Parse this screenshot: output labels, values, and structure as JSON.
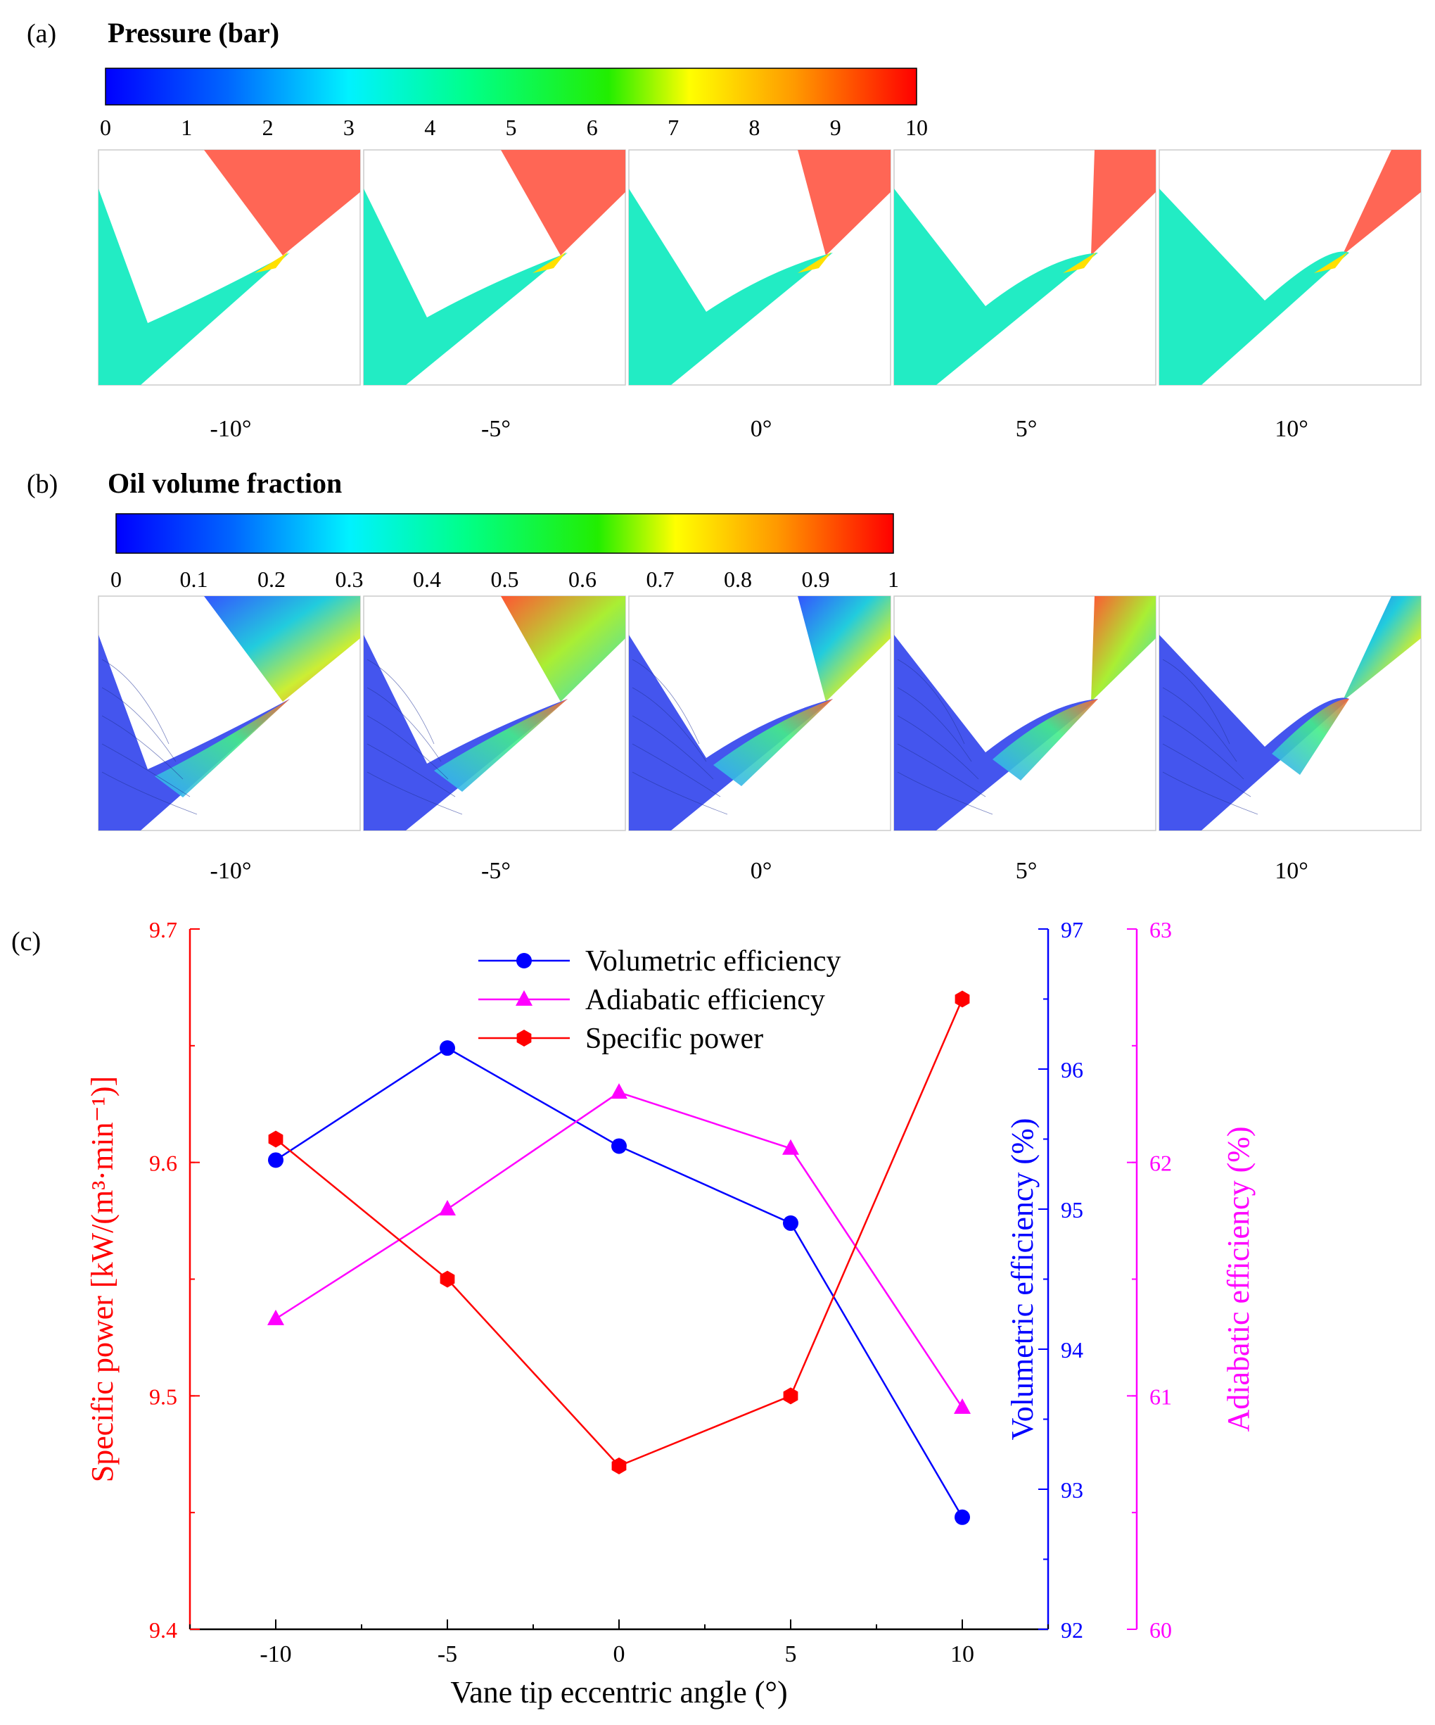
{
  "panels": {
    "a": {
      "label": "(a)",
      "title": "Pressure (bar)",
      "colorbar_ticks": [
        "0",
        "1",
        "2",
        "3",
        "4",
        "5",
        "6",
        "7",
        "8",
        "9",
        "10"
      ],
      "angles": [
        "-10°",
        "-5°",
        "0°",
        "5°",
        "10°"
      ]
    },
    "b": {
      "label": "(b)",
      "title": "Oil volume fraction",
      "colorbar_ticks": [
        "0",
        "0.1",
        "0.2",
        "0.3",
        "0.4",
        "0.5",
        "0.6",
        "0.7",
        "0.8",
        "0.9",
        "1"
      ],
      "angles": [
        "-10°",
        "-5°",
        "0°",
        "5°",
        "10°"
      ]
    },
    "c": {
      "label": "(c)"
    }
  },
  "colors": {
    "specific_power": "#ff0000",
    "volumetric": "#0000ff",
    "adiabatic": "#ff00ff",
    "pressure_high": "#ff6655",
    "pressure_low": "#22ecc4",
    "oil_low": "#4455ee"
  },
  "chart_data": {
    "type": "line",
    "xlabel": "Vane tip eccentric angle (°)",
    "x": [
      -10,
      -5,
      0,
      5,
      10
    ],
    "x_ticks": [
      "-10",
      "-5",
      "0",
      "5",
      "10"
    ],
    "xlim": [
      -12.5,
      12.5
    ],
    "series": [
      {
        "name": "Volumetric efficiency",
        "axis": "right1",
        "marker": "circle",
        "color": "#0000ff",
        "values": [
          95.35,
          96.15,
          95.45,
          94.9,
          92.8
        ]
      },
      {
        "name": "Adiabatic efficiency",
        "axis": "right2",
        "marker": "triangle",
        "color": "#ff00ff",
        "values": [
          61.33,
          61.8,
          62.3,
          62.06,
          60.95
        ]
      },
      {
        "name": "Specific power",
        "axis": "left",
        "marker": "hexagon",
        "color": "#ff0000",
        "values": [
          9.61,
          9.55,
          9.47,
          9.5,
          9.67
        ]
      }
    ],
    "axes": {
      "left": {
        "label": "Specific power [kW/(m³·min⁻¹)]",
        "ylim": [
          9.4,
          9.7
        ],
        "ticks": [
          "9.4",
          "9.5",
          "9.6",
          "9.7"
        ],
        "tick_values": [
          9.4,
          9.5,
          9.6,
          9.7
        ]
      },
      "right1": {
        "label": "Volumetric efficiency (%)",
        "ylim": [
          92,
          97
        ],
        "ticks": [
          "92",
          "93",
          "94",
          "95",
          "96",
          "97"
        ],
        "tick_values": [
          92,
          93,
          94,
          95,
          96,
          97
        ]
      },
      "right2": {
        "label": "Adiabatic efficiency (%)",
        "ylim": [
          60,
          63
        ],
        "ticks": [
          "60",
          "61",
          "62",
          "63"
        ],
        "tick_values": [
          60,
          61,
          62,
          63
        ]
      }
    },
    "legend_position": "top-center"
  }
}
